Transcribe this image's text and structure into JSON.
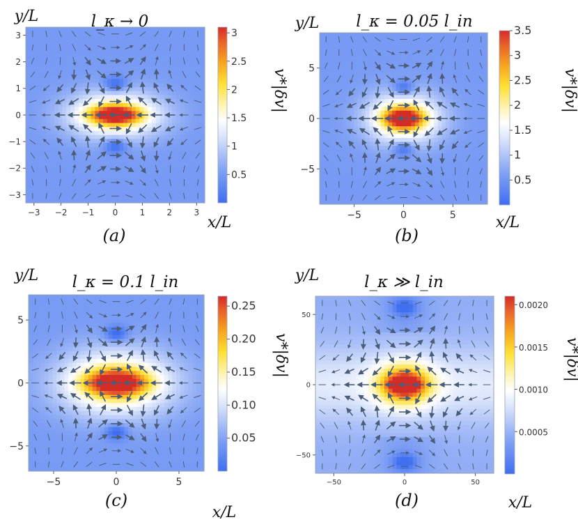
{
  "colors": {
    "low": "#4a78f0",
    "mid": "#ffffff",
    "high": "#d93a2c",
    "arrow": "#4a5d78"
  },
  "chart_data": [
    {
      "type": "heatmap",
      "panel": "a",
      "caption": "(a)",
      "title": "l_κ → 0",
      "xlabel": "x/L",
      "ylabel": "y/L",
      "colorbar_label": "v*|δv|",
      "xlim": [
        -3.3,
        3.3
      ],
      "ylim": [
        -3.3,
        3.3
      ],
      "xticks": [
        -3,
        -2,
        -1,
        0,
        1,
        2,
        3
      ],
      "yticks": [
        -3,
        -2,
        -1,
        0,
        1,
        2,
        3
      ],
      "xtick_labels": [
        "−3",
        "−2",
        "−1",
        "0",
        "1",
        "2",
        "3"
      ],
      "ytick_labels": [
        "−3",
        "−2",
        "−1",
        "0",
        "1",
        "2",
        "3"
      ],
      "colorbar_range": [
        0,
        3.1
      ],
      "colorbar_ticks": [
        0.5,
        1,
        1.5,
        2,
        2.5,
        3
      ],
      "colorbar_tick_labels": [
        "0.5",
        "1",
        "1.5",
        "2",
        "2.5",
        "3"
      ],
      "peak_value": 3.1,
      "lobe_center_y": 1.15
    },
    {
      "type": "heatmap",
      "panel": "b",
      "caption": "(b)",
      "title": "l_κ = 0.05 l_in",
      "xlabel": "x/L",
      "ylabel": "y/L",
      "colorbar_label": "v*|δv|",
      "xlim": [
        -8.5,
        8.5
      ],
      "ylim": [
        -8.5,
        8.5
      ],
      "xticks": [
        -5,
        0,
        5
      ],
      "yticks": [
        -5,
        0,
        5
      ],
      "xtick_labels": [
        "−5",
        "0",
        "5"
      ],
      "ytick_labels": [
        "−5",
        "0",
        "5"
      ],
      "colorbar_range": [
        0,
        3.5
      ],
      "colorbar_ticks": [
        0.5,
        1,
        1.5,
        2,
        2.5,
        3,
        3.5
      ],
      "colorbar_tick_labels": [
        "0.5",
        "1",
        "1.5",
        "2",
        "2.5",
        "3",
        "3.5"
      ],
      "peak_value": 3.5,
      "lobe_center_y": 3.0
    },
    {
      "type": "heatmap",
      "panel": "c",
      "caption": "(c)",
      "title": "l_κ = 0.1 l_in",
      "xlabel": "x/L",
      "ylabel": "y/L",
      "colorbar_label": "v*|δv|",
      "xlim": [
        -7,
        7
      ],
      "ylim": [
        -7,
        7
      ],
      "xticks": [
        -5,
        0,
        5
      ],
      "yticks": [
        -5,
        0,
        5
      ],
      "xtick_labels": [
        "−5",
        "0",
        "5"
      ],
      "ytick_labels": [
        "−5",
        "0",
        "5"
      ],
      "colorbar_range": [
        0,
        0.265
      ],
      "colorbar_ticks": [
        0.05,
        0.1,
        0.15,
        0.2,
        0.25
      ],
      "colorbar_tick_labels": [
        "0.05",
        "0.10",
        "0.15",
        "0.20",
        "0.25"
      ],
      "peak_value": 0.265,
      "lobe_center_y": 3.9
    },
    {
      "type": "heatmap",
      "panel": "d",
      "caption": "(d)",
      "title": "l_κ ≫ l_in",
      "xlabel": "x/L",
      "ylabel": "y/L",
      "colorbar_label": "v*|δv|",
      "xlim": [
        -63,
        63
      ],
      "ylim": [
        -63,
        63
      ],
      "xticks": [
        -50,
        0,
        50
      ],
      "yticks": [
        -50,
        0,
        50
      ],
      "xtick_labels": [
        "−50",
        "0",
        "50"
      ],
      "ytick_labels": [
        "−50",
        "0",
        "50"
      ],
      "colorbar_range": [
        0,
        0.0021
      ],
      "colorbar_ticks": [
        0.0005,
        0.001,
        0.0015,
        0.002
      ],
      "colorbar_tick_labels": [
        "0.0005",
        "0.0010",
        "0.0015",
        "0.0020"
      ],
      "peak_value": 0.0021,
      "lobe_center_y": 55
    }
  ]
}
